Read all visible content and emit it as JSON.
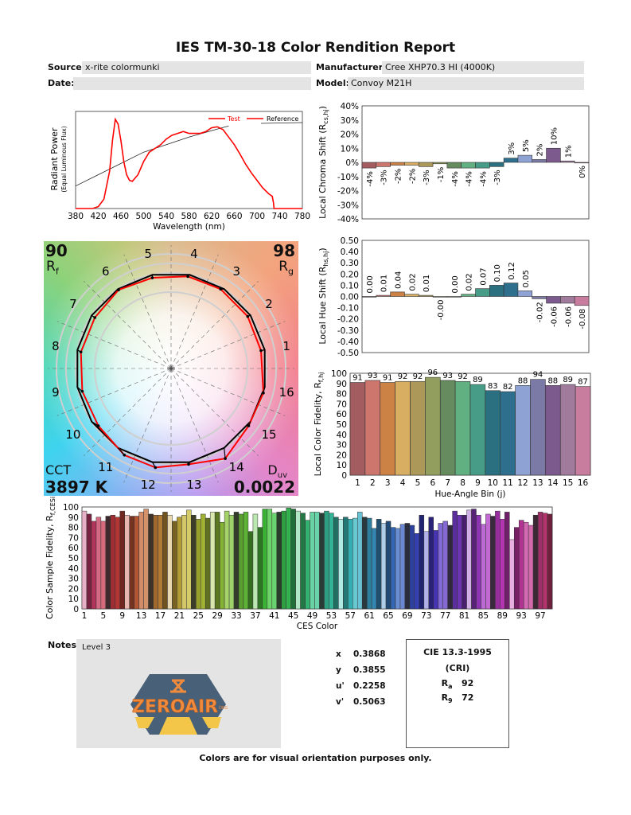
{
  "header": {
    "title": "IES TM-30-18 Color Rendition Report",
    "source_label": "Source:",
    "source_value": "x-rite colormunki",
    "manufacturer_label": "Manufacturer:",
    "manufacturer_value": "Cree XHP70.3 HI (4000K)",
    "date_label": "Date:",
    "date_value": "",
    "model_label": "Model:",
    "model_value": "Convoy M21H"
  },
  "metrics": {
    "rf": "90",
    "rf_label": "R",
    "rf_sub": "f",
    "rg": "98",
    "rg_label": "R",
    "rg_sub": "g",
    "cct_label": "CCT",
    "cct": "3897 K",
    "duv_label": "D",
    "duv_sub": "uv",
    "duv": "0.0022"
  },
  "watermark": {
    "text": "ZEROAIR",
    "sub": "ORG",
    "colors": {
      "hex": "#3f5a73",
      "text": "#f08a3c",
      "beam": "#f3c64a"
    }
  },
  "notes": {
    "label": "Notes:",
    "value": "Level 3"
  },
  "chromaticity": [
    {
      "label": "x",
      "value": "0.3868"
    },
    {
      "label": "y",
      "value": "0.3855"
    },
    {
      "label": "u'",
      "value": "0.2258"
    },
    {
      "label": "v'",
      "value": "0.5063"
    }
  ],
  "cri": {
    "title": "CIE 13.3-1995",
    "subtitle": "(CRI)",
    "ra_label": "R",
    "ra_sub": "a",
    "ra": "92",
    "r9_label": "R",
    "r9_sub": "9",
    "r9": "72"
  },
  "footer": "Colors are for visual orientation purposes only.",
  "bin_colors": [
    "#a35c60",
    "#cc766e",
    "#cc8145",
    "#d8ae62",
    "#ac9959",
    "#919e5d",
    "#668b5e",
    "#61b082",
    "#479c87",
    "#2b7080",
    "#2e6f8e",
    "#8fa2d4",
    "#7b7aa6",
    "#7c5a8e",
    "#a07b9b",
    "#c87d9f"
  ],
  "chart_data": [
    {
      "type": "line",
      "id": "spectrum",
      "xlabel": "Wavelength (nm)",
      "ylabel": "Radiant Power",
      "ylabel2": "(Equal Luminous Flux)",
      "xlim": [
        380,
        780
      ],
      "xticks": [
        380,
        420,
        460,
        500,
        540,
        580,
        620,
        660,
        700,
        740,
        780
      ],
      "legend": [
        "Test",
        "Reference"
      ],
      "legend_position": "top-right",
      "series": [
        {
          "name": "Test",
          "color": "#ff0000",
          "x": [
            380,
            410,
            420,
            430,
            440,
            445,
            450,
            455,
            460,
            465,
            470,
            475,
            480,
            490,
            500,
            510,
            520,
            530,
            540,
            550,
            560,
            570,
            580,
            590,
            600,
            610,
            620,
            630,
            640,
            650,
            660,
            670,
            680,
            690,
            700,
            710,
            720,
            727,
            729,
            730,
            780
          ],
          "y": [
            0,
            0,
            0.02,
            0.1,
            0.4,
            0.72,
            0.95,
            0.9,
            0.72,
            0.5,
            0.36,
            0.3,
            0.29,
            0.36,
            0.5,
            0.6,
            0.64,
            0.68,
            0.74,
            0.78,
            0.8,
            0.82,
            0.8,
            0.8,
            0.8,
            0.82,
            0.86,
            0.87,
            0.84,
            0.76,
            0.68,
            0.58,
            0.47,
            0.38,
            0.3,
            0.22,
            0.16,
            0.13,
            0.06,
            0,
            0
          ]
        },
        {
          "name": "Reference",
          "color": "#222222",
          "x": [
            380,
            420,
            460,
            500,
            540,
            580,
            620,
            650
          ],
          "y": [
            0.24,
            0.36,
            0.48,
            0.6,
            0.68,
            0.76,
            0.83,
            0.88
          ]
        }
      ]
    },
    {
      "type": "bar",
      "id": "chroma",
      "ylabel": "Local Chroma Shift (R",
      "ylabel_sub": "cs,hj",
      "ylabel_end": ")",
      "ylim": [
        -40,
        40
      ],
      "yticks": [
        "40%",
        "30%",
        "20%",
        "10%",
        "0%",
        "-10%",
        "-20%",
        "-30%",
        "-40%"
      ],
      "categories": [
        1,
        2,
        3,
        4,
        5,
        6,
        7,
        8,
        9,
        10,
        11,
        12,
        13,
        14,
        15,
        16
      ],
      "values": [
        -4,
        -3,
        -2,
        -2,
        -3,
        -1,
        -4,
        -4,
        -4,
        -3,
        3,
        5,
        2,
        10,
        1,
        0
      ],
      "labels": [
        "-4%",
        "-3%",
        "-2%",
        "-2%",
        "-3%",
        "-1%",
        "-4%",
        "-4%",
        "-4%",
        "-3%",
        "3%",
        "5%",
        "2%",
        "10%",
        "1%",
        "0%"
      ]
    },
    {
      "type": "bar",
      "id": "hue",
      "ylabel": "Local Hue Shift (R",
      "ylabel_sub": "hs,hj",
      "ylabel_end": ")",
      "ylim": [
        -0.5,
        0.5
      ],
      "yticks": [
        "0.50",
        "0.40",
        "0.30",
        "0.20",
        "0.10",
        "0.00",
        "-0.10",
        "-0.20",
        "-0.30",
        "-0.40",
        "-0.50"
      ],
      "categories": [
        1,
        2,
        3,
        4,
        5,
        6,
        7,
        8,
        9,
        10,
        11,
        12,
        13,
        14,
        15,
        16
      ],
      "values": [
        0.0,
        0.01,
        0.04,
        0.02,
        0.01,
        -0.0,
        0.0,
        0.02,
        0.07,
        0.1,
        0.12,
        0.05,
        -0.02,
        -0.06,
        -0.06,
        -0.08
      ],
      "labels": [
        "0.00",
        "0.01",
        "0.04",
        "0.02",
        "0.01",
        "-0.00",
        "0.00",
        "0.02",
        "0.07",
        "0.10",
        "0.12",
        "0.05",
        "-0.02",
        "-0.06",
        "-0.06",
        "-0.08"
      ]
    },
    {
      "type": "bar",
      "id": "fidelity",
      "xlabel": "Hue-Angle Bin (j)",
      "ylabel": "Local Color Fidelity, R",
      "ylabel_sub": "f,hj",
      "ylim": [
        0,
        100
      ],
      "yticks": [
        "0",
        "10",
        "20",
        "30",
        "40",
        "50",
        "60",
        "70",
        "80",
        "90",
        "100"
      ],
      "categories": [
        1,
        2,
        3,
        4,
        5,
        6,
        7,
        8,
        9,
        10,
        11,
        12,
        13,
        14,
        15,
        16
      ],
      "values": [
        91,
        93,
        91,
        92,
        92,
        96,
        93,
        92,
        89,
        83,
        82,
        88,
        94,
        88,
        89,
        87
      ]
    },
    {
      "type": "bar",
      "id": "ces",
      "xlabel": "CES Color",
      "ylabel": "Color Sample Fidelity, R",
      "ylabel_sub": "f,CESi",
      "ylim": [
        0,
        100
      ],
      "yticks": [
        "0",
        "10",
        "20",
        "30",
        "40",
        "50",
        "60",
        "70",
        "80",
        "90",
        "100"
      ],
      "xticks": [
        1,
        5,
        9,
        13,
        17,
        21,
        25,
        29,
        33,
        37,
        41,
        45,
        49,
        53,
        57,
        61,
        65,
        69,
        73,
        77,
        81,
        85,
        89,
        93,
        97
      ],
      "values": [
        96,
        93,
        86,
        90,
        86,
        91,
        92,
        90,
        96,
        92,
        91,
        91,
        95,
        98,
        93,
        92,
        92,
        95,
        92,
        86,
        90,
        92,
        97,
        92,
        88,
        93,
        89,
        95,
        95,
        85,
        96,
        92,
        95,
        93,
        95,
        76,
        93,
        80,
        98,
        98,
        94,
        95,
        96,
        99,
        98,
        96,
        94,
        87,
        95,
        95,
        94,
        96,
        94,
        90,
        88,
        90,
        88,
        89,
        95,
        90,
        89,
        79,
        88,
        84,
        86,
        80,
        79,
        83,
        84,
        82,
        74,
        92,
        76,
        90,
        77,
        84,
        86,
        82,
        96,
        92,
        92,
        97,
        98,
        92,
        83,
        93,
        91,
        96,
        88,
        95,
        68,
        80,
        87,
        85,
        82,
        92,
        95,
        94,
        93
      ]
    },
    {
      "type": "vector",
      "id": "color-vector-graphic",
      "bin_labels": [
        "1",
        "2",
        "3",
        "4",
        "5",
        "6",
        "7",
        "8",
        "9",
        "10",
        "11",
        "12",
        "13",
        "14",
        "15",
        "16"
      ],
      "series": [
        {
          "name": "Test",
          "color": "#ff0000"
        },
        {
          "name": "Reference",
          "color": "#000000"
        }
      ]
    }
  ]
}
